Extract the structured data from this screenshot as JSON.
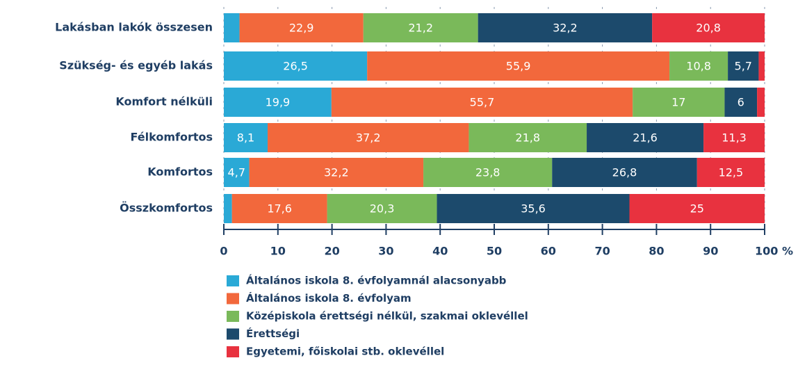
{
  "chart_data": {
    "type": "stacked_barh",
    "categories": [
      "Lakásban lakók összesen",
      "Szükség- és egyéb lakás",
      "Komfort nélküli",
      "Félkomfortos",
      "Komfortos",
      "Összkomfortos"
    ],
    "series": [
      {
        "name": "Általános iskola 8. évfolyamnál alacsonyabb",
        "color": "#2aa9d6",
        "values": [
          2.9,
          26.5,
          19.9,
          8.1,
          4.7,
          1.5
        ],
        "value_labels": [
          null,
          "26,5",
          "19,9",
          "8,1",
          "4,7",
          null
        ]
      },
      {
        "name": "Általános iskola 8. évfolyam",
        "color": "#f2683c",
        "values": [
          22.9,
          55.9,
          55.7,
          37.2,
          32.2,
          17.6
        ],
        "value_labels": [
          "22,9",
          "55,9",
          "55,7",
          "37,2",
          "32,2",
          "17,6"
        ]
      },
      {
        "name": "Középiskola érettségi nélkül, szakmai oklevéllel",
        "color": "#7ab95a",
        "values": [
          21.2,
          10.8,
          17,
          21.8,
          23.8,
          20.3
        ],
        "value_labels": [
          "21,2",
          "10,8",
          "17",
          "21,8",
          "23,8",
          "20,3"
        ]
      },
      {
        "name": "Érettségi",
        "color": "#1c4a6c",
        "values": [
          32.2,
          5.7,
          6,
          21.6,
          26.8,
          35.6
        ],
        "value_labels": [
          "32,2",
          "5,7",
          "6",
          "21,6",
          "26,8",
          "35,6"
        ]
      },
      {
        "name": "Egyetemi, főiskolai stb. oklevéllel",
        "color": "#e8323f",
        "values": [
          20.8,
          1.1,
          1.4,
          11.3,
          12.5,
          25
        ],
        "value_labels": [
          "20,8",
          null,
          null,
          "11,3",
          "12,5",
          "25"
        ]
      }
    ],
    "xlim": [
      0,
      100
    ],
    "xticks": [
      0,
      10,
      20,
      30,
      40,
      50,
      60,
      70,
      80,
      90,
      {
        "value": 100,
        "label": "100 %"
      }
    ],
    "grid": true
  }
}
